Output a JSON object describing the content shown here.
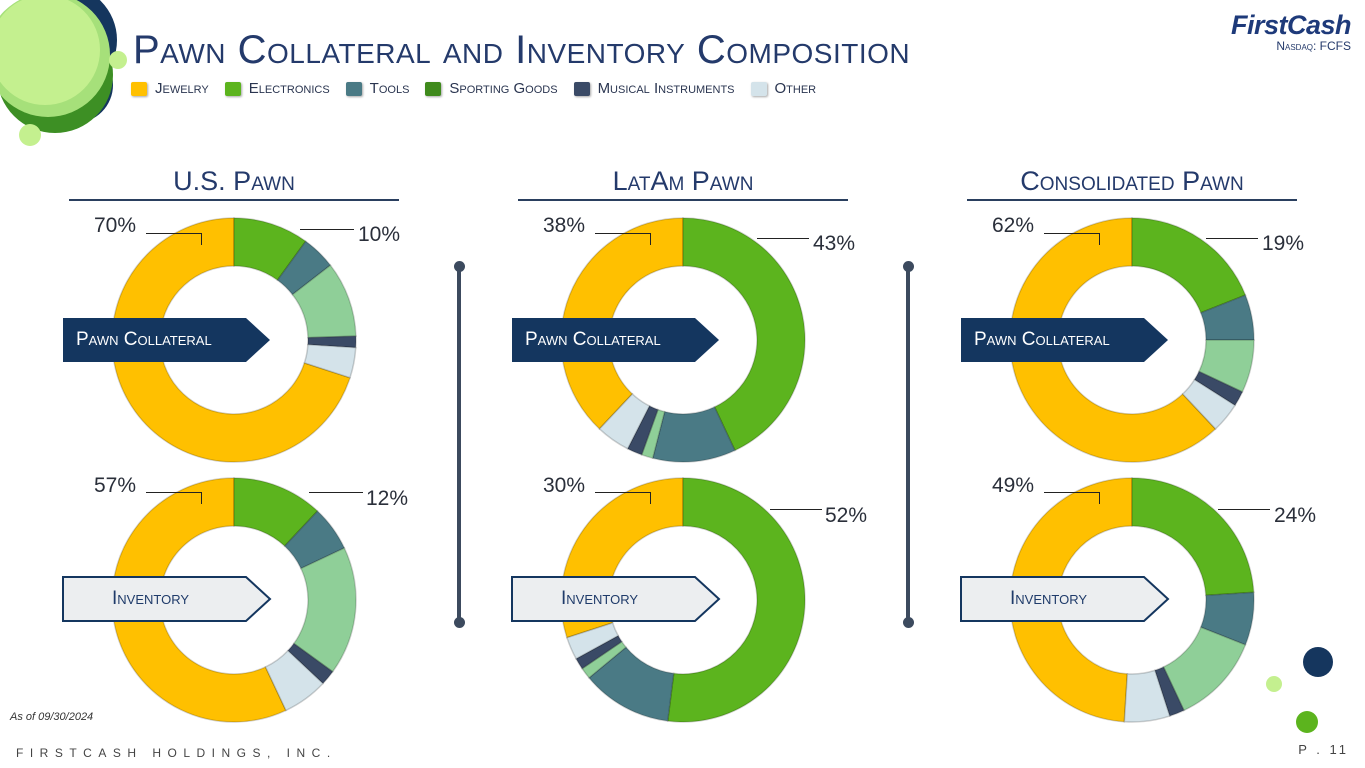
{
  "title": "Pawn Collateral and Inventory Composition",
  "logo": {
    "brand": "FirstCash",
    "ticker": "Nasdaq: FCFS"
  },
  "legend": [
    {
      "label": "Jewelry",
      "color": "#ffc000"
    },
    {
      "label": "Electronics",
      "color": "#5cb41e"
    },
    {
      "label": "Tools",
      "color": "#4a7a85"
    },
    {
      "label": "Sporting Goods",
      "color": "#3f8a1c"
    },
    {
      "label": "Musical Instruments",
      "color": "#3a4a66"
    },
    {
      "label": "Other",
      "color": "#d4e3ea"
    }
  ],
  "tags": {
    "collateral": "Pawn Collateral",
    "inventory": "Inventory"
  },
  "sections": [
    {
      "title": "U.S. Pawn"
    },
    {
      "title": "LatAm Pawn"
    },
    {
      "title": "Consolidated Pawn"
    }
  ],
  "chart_data": [
    {
      "type": "pie",
      "title": "U.S. Pawn — Pawn Collateral",
      "categories": [
        "Jewelry",
        "Electronics",
        "Tools",
        "Other green",
        "Musical Instruments",
        "Other"
      ],
      "values": [
        70,
        10,
        4.5,
        10,
        1.5,
        4
      ],
      "colors": [
        "#ffc000",
        "#5cb41e",
        "#4a7a85",
        "#8fcf98",
        "#3a4a66",
        "#d4e3ea"
      ],
      "labels": [
        "70%",
        "10%"
      ]
    },
    {
      "type": "pie",
      "title": "U.S. Pawn — Inventory",
      "categories": [
        "Jewelry",
        "Electronics",
        "Tools",
        "Other green",
        "Musical Instruments",
        "Other"
      ],
      "values": [
        57,
        12,
        6,
        17,
        2,
        6
      ],
      "colors": [
        "#ffc000",
        "#5cb41e",
        "#4a7a85",
        "#8fcf98",
        "#3a4a66",
        "#d4e3ea"
      ],
      "labels": [
        "57%",
        "12%"
      ]
    },
    {
      "type": "pie",
      "title": "LatAm Pawn — Pawn Collateral",
      "categories": [
        "Jewelry",
        "Electronics",
        "Tools",
        "Other green",
        "Musical Instruments",
        "Other"
      ],
      "values": [
        38,
        43,
        11,
        1.5,
        2,
        4.5
      ],
      "colors": [
        "#ffc000",
        "#5cb41e",
        "#4a7a85",
        "#8fcf98",
        "#3a4a66",
        "#d4e3ea"
      ],
      "labels": [
        "38%",
        "43%"
      ]
    },
    {
      "type": "pie",
      "title": "LatAm Pawn — Inventory",
      "categories": [
        "Jewelry",
        "Electronics",
        "Tools",
        "Other green",
        "Musical Instruments",
        "Other"
      ],
      "values": [
        30,
        52,
        12,
        1.5,
        1.5,
        3
      ],
      "colors": [
        "#ffc000",
        "#5cb41e",
        "#4a7a85",
        "#8fcf98",
        "#3a4a66",
        "#d4e3ea"
      ],
      "labels": [
        "30%",
        "52%"
      ]
    },
    {
      "type": "pie",
      "title": "Consolidated Pawn — Pawn Collateral",
      "categories": [
        "Jewelry",
        "Electronics",
        "Tools",
        "Other green",
        "Musical Instruments",
        "Other"
      ],
      "values": [
        62,
        19,
        6,
        7,
        2,
        4
      ],
      "colors": [
        "#ffc000",
        "#5cb41e",
        "#4a7a85",
        "#8fcf98",
        "#3a4a66",
        "#d4e3ea"
      ],
      "labels": [
        "62%",
        "19%"
      ]
    },
    {
      "type": "pie",
      "title": "Consolidated Pawn — Inventory",
      "categories": [
        "Jewelry",
        "Electronics",
        "Tools",
        "Other green",
        "Musical Instruments",
        "Other"
      ],
      "values": [
        49,
        24,
        7,
        12,
        2,
        6
      ],
      "colors": [
        "#ffc000",
        "#5cb41e",
        "#4a7a85",
        "#8fcf98",
        "#3a4a66",
        "#d4e3ea"
      ],
      "labels": [
        "49%",
        "24%"
      ]
    }
  ],
  "footer": {
    "as_of": "As of 09/30/2024",
    "company": "FIRSTCASH HOLDINGS, INC.",
    "page": "P . 11"
  }
}
